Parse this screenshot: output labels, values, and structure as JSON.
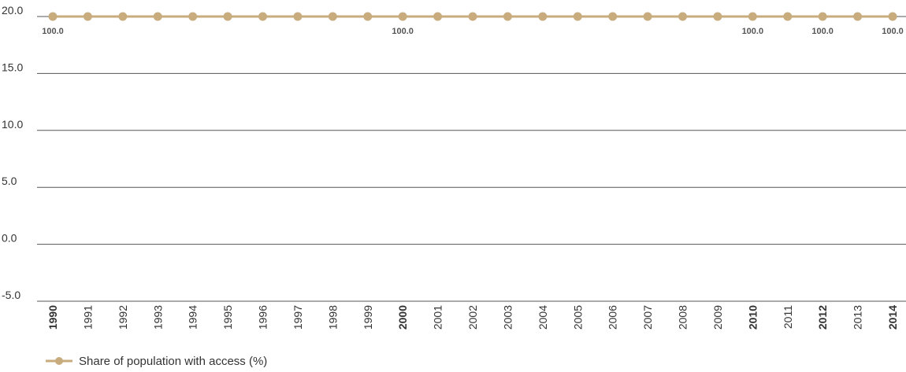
{
  "chart_data": {
    "type": "line",
    "x": [
      "1990",
      "1991",
      "1992",
      "1993",
      "1994",
      "1995",
      "1996",
      "1997",
      "1998",
      "1999",
      "2000",
      "2001",
      "2002",
      "2003",
      "2004",
      "2005",
      "2006",
      "2007",
      "2008",
      "2009",
      "2010",
      "2011",
      "2012",
      "2013",
      "2014"
    ],
    "bold_x": [
      "1990",
      "2000",
      "2010",
      "2012",
      "2014"
    ],
    "ylim": [
      -5.0,
      20.0
    ],
    "yticks": [
      "-5.0",
      "0.0",
      "5.0",
      "10.0",
      "15.0",
      "20.0"
    ],
    "grid": true,
    "legend_placement": "bottom-left",
    "series": [
      {
        "name": "Share of population with access (%)",
        "color": "#c8ac7e",
        "values": [
          100,
          100,
          100,
          100,
          100,
          100,
          100,
          100,
          100,
          100,
          100,
          100,
          100,
          100,
          100,
          100,
          100,
          100,
          100,
          100,
          100,
          100,
          100,
          100,
          100
        ],
        "labels": [
          {
            "x": "1990",
            "text": "100.0"
          },
          {
            "x": "2000",
            "text": "100.0"
          },
          {
            "x": "2010",
            "text": "100.0"
          },
          {
            "x": "2012",
            "text": "100.0"
          },
          {
            "x": "2014",
            "text": "100.0"
          }
        ]
      }
    ]
  }
}
